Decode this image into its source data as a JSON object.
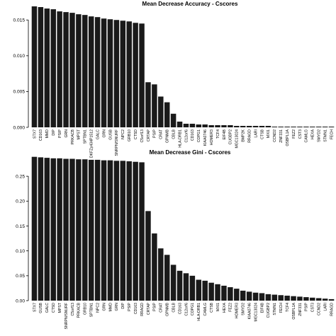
{
  "chart_data": [
    {
      "type": "bar",
      "title": "Mean Decrease Accuracy - Cscores",
      "xlabel": "",
      "ylabel": "",
      "ylim": [
        0,
        0.017
      ],
      "yticks": [
        "0.000",
        "0.005",
        "0.010",
        "0.015"
      ],
      "ytick_values": [
        0,
        0.005,
        0.01,
        0.015
      ],
      "bar_color": "#1a1a1a",
      "grid": false,
      "categories": [
        "STX7",
        "CD163",
        "MMD",
        "DIP",
        "PSIP",
        "GRN",
        "PRKACB",
        "MPST",
        "SPTBN1",
        "DKFZp434P1512",
        "GALC",
        "GRN",
        "GUSB",
        "SNRPN/SNURF",
        "NPC2",
        "GRB10",
        "CTSD",
        "C5orf13",
        "CRTAP",
        "PSIP",
        "CRAT",
        "GPNMB",
        "CBLB",
        "HLA-DRB1",
        "C12orf6",
        "CD163",
        "COPG1",
        "KIAA0746",
        "HOMER3",
        "TCF4",
        "EIF4B",
        "CUGBP2",
        "MGC13024",
        "BMP2K",
        "RRAGD",
        "LARI",
        "CTSB",
        "MXI1",
        "CCND2",
        "ZNF331",
        "OSBPL1A",
        "FEZ2",
        "CST3",
        "CAMLG",
        "HEXA",
        "SMYD2",
        "STMN1",
        "FECH"
      ],
      "values": [
        0.0169,
        0.0168,
        0.0166,
        0.0165,
        0.0162,
        0.0161,
        0.016,
        0.0158,
        0.0157,
        0.0155,
        0.0154,
        0.0152,
        0.0151,
        0.015,
        0.0149,
        0.0148,
        0.0146,
        0.0145,
        0.0063,
        0.006,
        0.0043,
        0.0035,
        0.0019,
        0.0008,
        0.0005,
        0.0005,
        0.0004,
        0.0004,
        0.0003,
        0.0003,
        0.0003,
        0.0003,
        0.0002,
        0.0002,
        0.0002,
        0.0002,
        0.0002,
        0.0002,
        0.0001,
        0.0001,
        0.0001,
        0.0001,
        0.0001,
        0.0001,
        0.0001,
        0.0001,
        0.0001,
        0.0001
      ]
    },
    {
      "type": "bar",
      "title": "Mean Decrease Gini - Cscores",
      "xlabel": "",
      "ylabel": "",
      "ylim": [
        0,
        0.29
      ],
      "yticks": [
        "0.00",
        "0.05",
        "0.10",
        "0.15",
        "0.20",
        "0.25"
      ],
      "ytick_values": [
        0,
        0.05,
        0.1,
        0.15,
        0.2,
        0.25
      ],
      "bar_color": "#1a1a1a",
      "grid": false,
      "categories": [
        "STX7",
        "GUSB",
        "GALC",
        "CTSD",
        "MPST",
        "SNRPN/SNURF",
        "C5orf13",
        "PRKACB",
        "GRB10",
        "SPTBN1",
        "NPC2",
        "GRN",
        "MMD",
        "GRN",
        "DIP",
        "PSIP",
        "CD163",
        "RRAGD",
        "CRTAP",
        "PSIP",
        "CRAT",
        "GPNMB",
        "CBLB",
        "CD163",
        "C12orf6",
        "COPG1",
        "HLA-DRB1",
        "CAMLG",
        "CTSB",
        "MXI1",
        "HEXA",
        "FEZ2",
        "HOMER3",
        "SMYD2",
        "KIAA0746",
        "MGC13024",
        "EIF4B",
        "CUGBP2",
        "STMN1",
        "FECH",
        "TCF4",
        "OSBPL1A",
        "ZNF331",
        "PSIP",
        "CST3",
        "CCND2",
        "LARI",
        "RRAGD"
      ],
      "values": [
        0.289,
        0.288,
        0.287,
        0.286,
        0.286,
        0.285,
        0.285,
        0.284,
        0.284,
        0.283,
        0.283,
        0.282,
        0.282,
        0.281,
        0.281,
        0.28,
        0.279,
        0.278,
        0.18,
        0.135,
        0.105,
        0.092,
        0.072,
        0.06,
        0.055,
        0.05,
        0.042,
        0.04,
        0.036,
        0.033,
        0.03,
        0.027,
        0.024,
        0.02,
        0.018,
        0.016,
        0.015,
        0.013,
        0.012,
        0.011,
        0.01,
        0.009,
        0.008,
        0.007,
        0.006,
        0.005,
        0.004,
        0.003
      ]
    }
  ]
}
